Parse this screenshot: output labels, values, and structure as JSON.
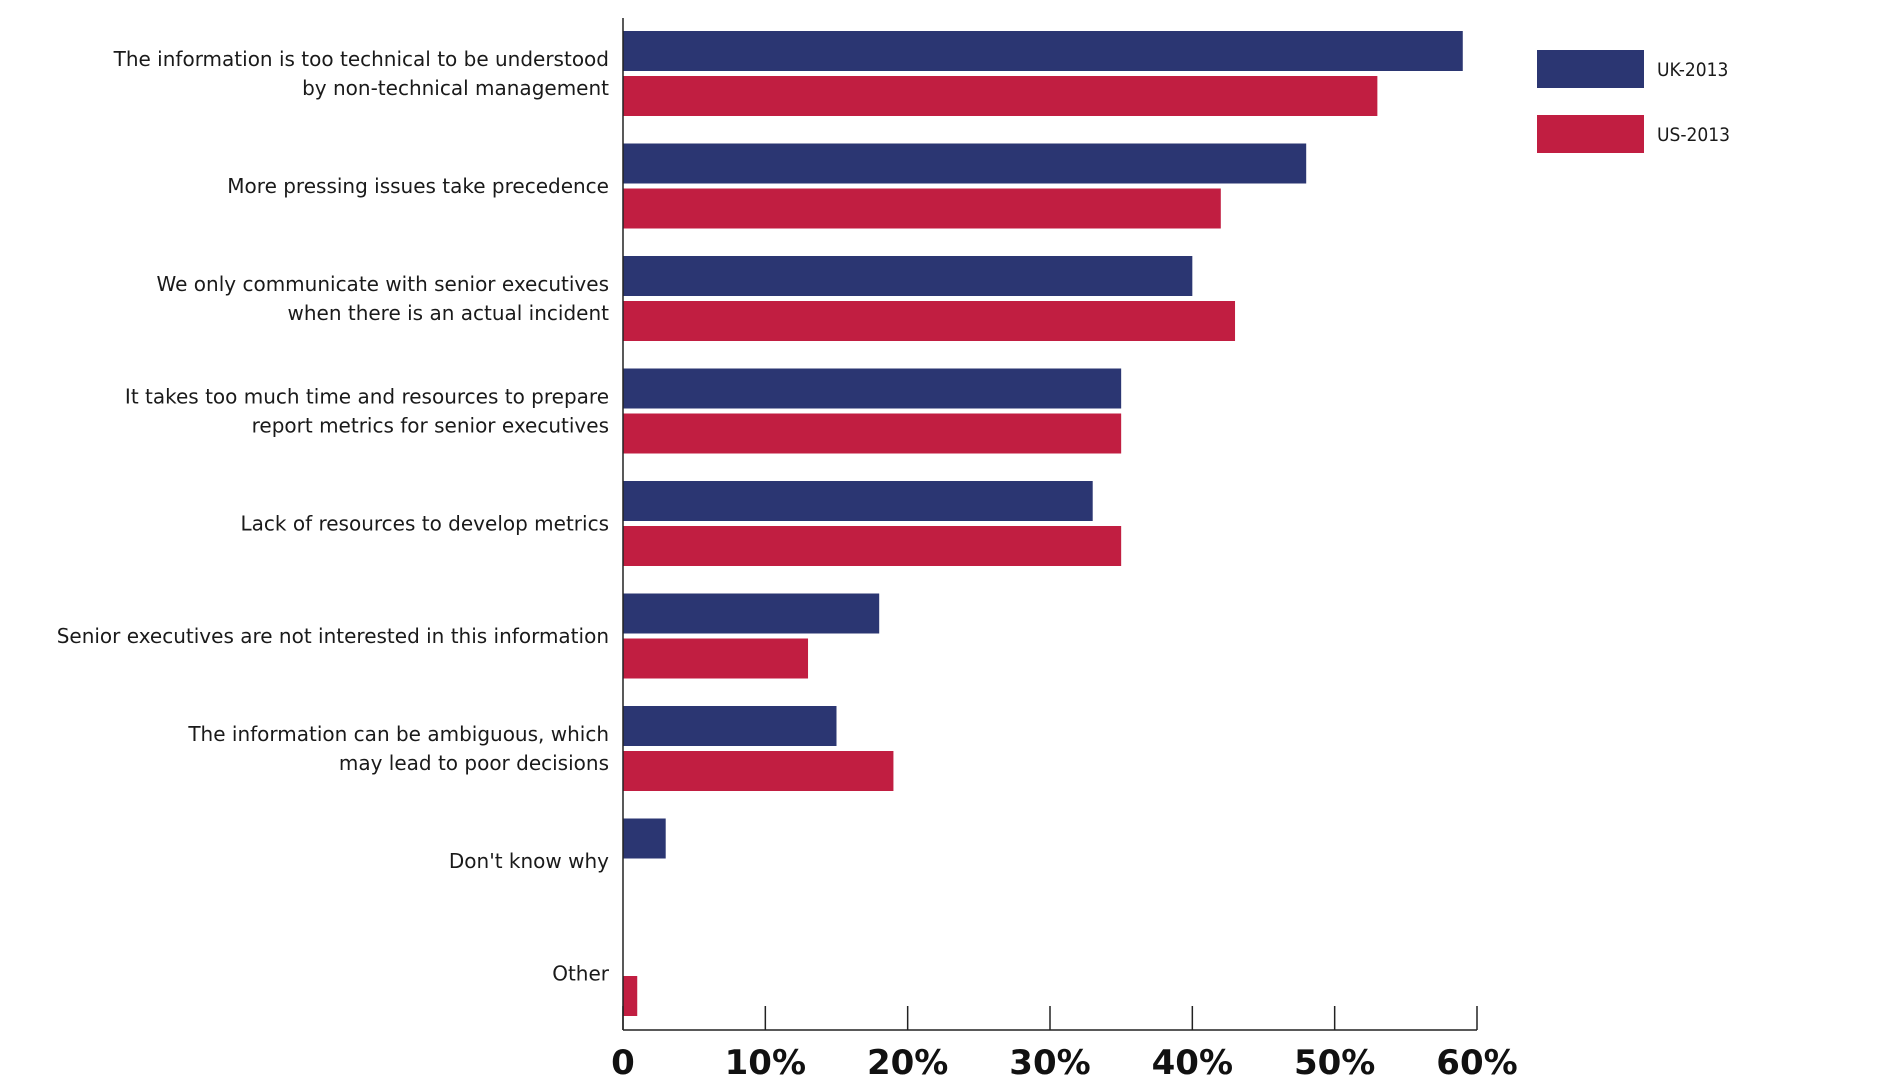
{
  "chart_data": {
    "type": "bar",
    "orientation": "horizontal",
    "categories": [
      [
        "The information is too technical to be understood",
        "by non-technical management"
      ],
      [
        "More pressing issues take precedence"
      ],
      [
        "We only communicate with senior executives",
        "when there is an actual incident"
      ],
      [
        "It takes too much time and resources to prepare",
        "report metrics for senior executives"
      ],
      [
        "Lack of resources to develop metrics"
      ],
      [
        "Senior executives are not interested in this information"
      ],
      [
        "The information can be ambiguous, which",
        "may lead to poor decisions"
      ],
      [
        "Don't know why"
      ],
      [
        "Other"
      ]
    ],
    "series": [
      {
        "name": "UK-2013",
        "color": "#2b3672",
        "values": [
          59,
          48,
          40,
          35,
          33,
          18,
          15,
          3,
          0
        ]
      },
      {
        "name": "US-2013",
        "color": "#c11e41",
        "values": [
          53,
          42,
          43,
          35,
          35,
          13,
          19,
          0,
          1
        ]
      }
    ],
    "xlim": [
      0,
      60
    ],
    "xticks": [
      0,
      10,
      20,
      30,
      40,
      50,
      60
    ],
    "xtick_labels": [
      "0",
      "10%",
      "20%",
      "30%",
      "40%",
      "50%",
      "60%"
    ],
    "legend_position": "top-right",
    "grid": false
  }
}
